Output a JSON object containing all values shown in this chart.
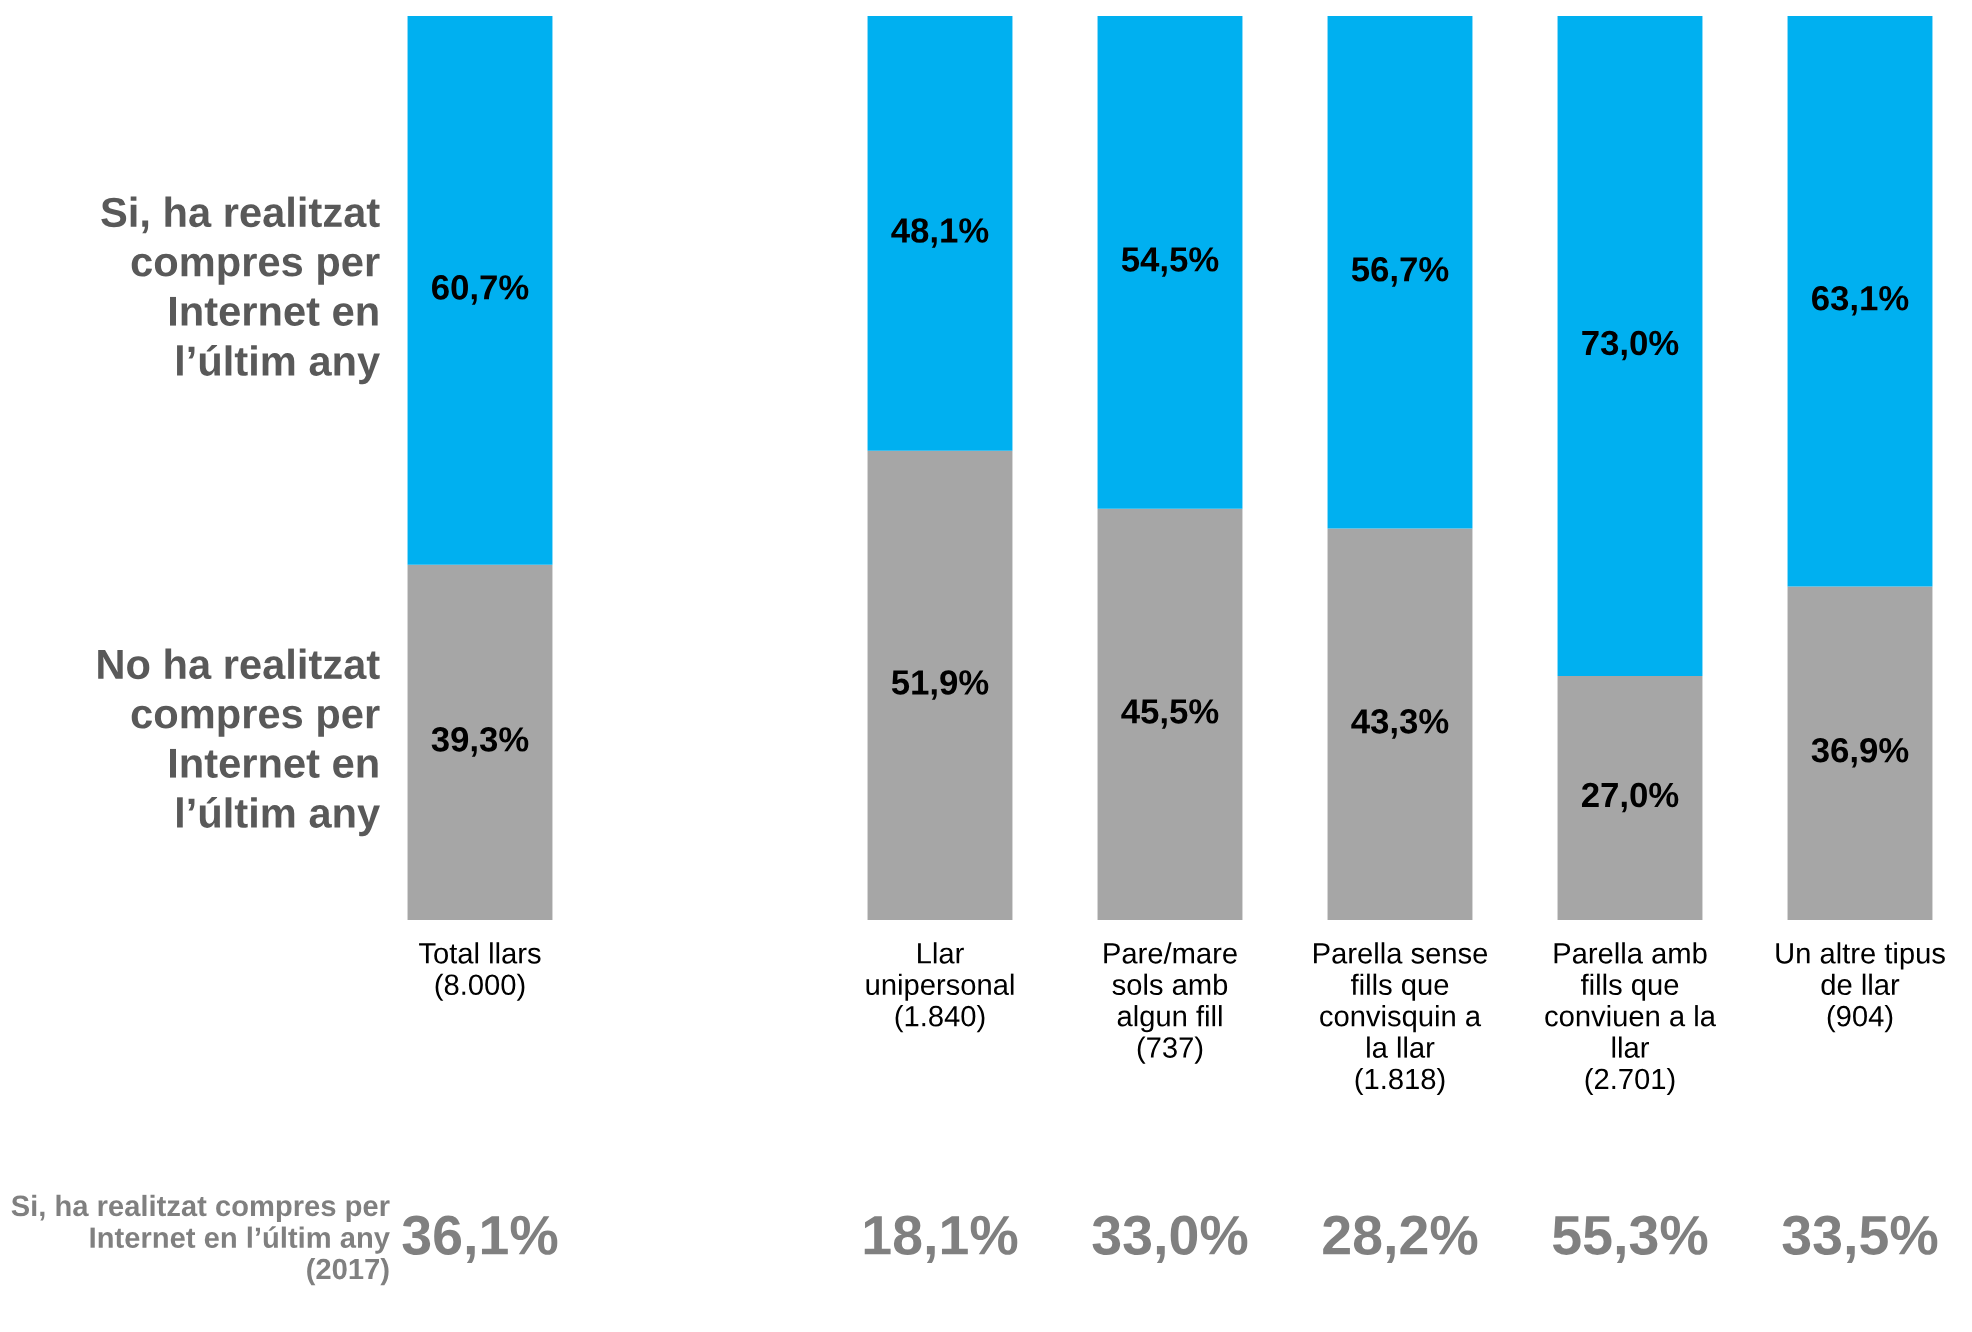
{
  "chart_data": {
    "type": "bar",
    "stacked": true,
    "legend": false,
    "grid": false,
    "tick_labels": "x",
    "ylim": [
      0,
      100
    ],
    "categories": [
      "Total llars\n(8.000)",
      null,
      "Llar\nunipersonal\n(1.840)",
      "Pare/mare\nsols amb\nalgun fill\n(737)",
      "Parella sense\nfills que\nconvisquin a\nla llar\n(1.818)",
      "Parella amb\nfills que\nconviuen a la\nllar\n(2.701)",
      "Un altre tipus\nde llar\n(904)"
    ],
    "series": [
      {
        "name": "No ha realitzat compres per Internet en l’últim any",
        "color": "#a6a6a6",
        "values": [
          39.3,
          null,
          51.9,
          45.5,
          43.3,
          27.0,
          36.9
        ],
        "value_labels": [
          "39,3%",
          null,
          "51,9%",
          "45,5%",
          "43,3%",
          "27,0%",
          "36,9%"
        ]
      },
      {
        "name": "Si, ha realitzat compres per Internet en l’últim any",
        "color": "#00b0f0",
        "values": [
          60.7,
          null,
          48.1,
          54.5,
          56.7,
          73.0,
          63.1
        ],
        "value_labels": [
          "60,7%",
          null,
          "48,1%",
          "54,5%",
          "56,7%",
          "73,0%",
          "63,1%"
        ]
      }
    ],
    "annotations": [
      "Si, ha realitzat compres per Internet en l’últim any (2017)",
      "36,1%",
      "18,1%",
      "33,0%",
      "28,2%",
      "55,3%",
      "33,5%"
    ]
  }
}
